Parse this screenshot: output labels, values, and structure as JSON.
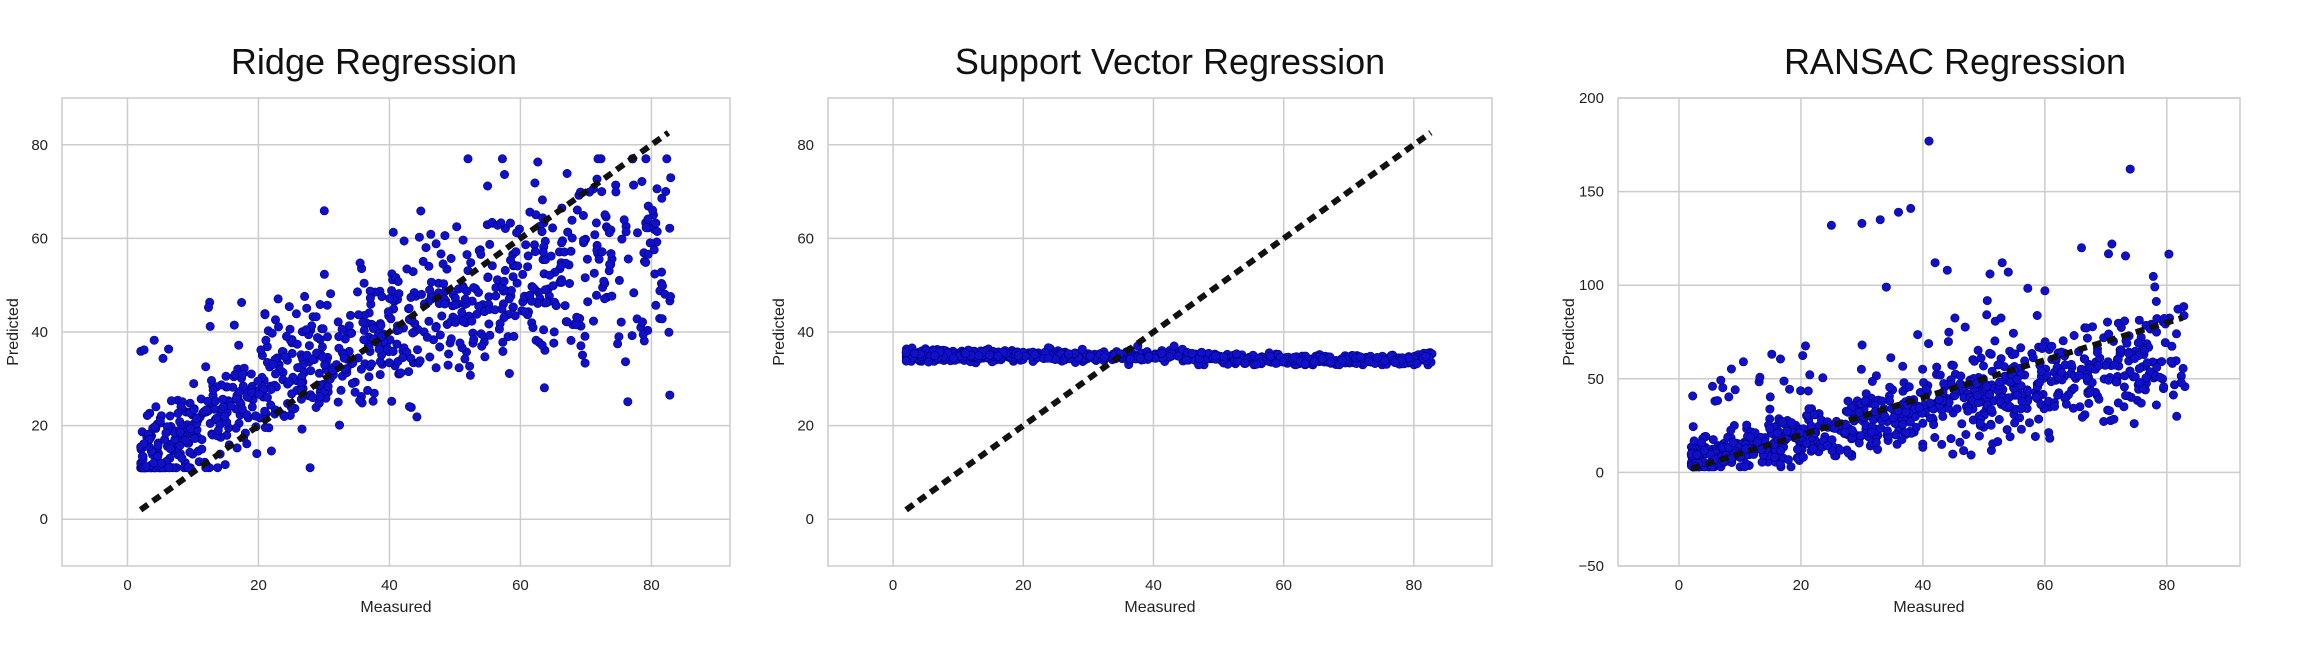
{
  "colors": {
    "points": "#1010c8",
    "point_edge": "#000080",
    "fit_line": "#111111",
    "grid": "#cccccc",
    "frame": "#cccccc"
  },
  "chart_data": [
    {
      "type": "scatter",
      "title": "Ridge Regression",
      "xlabel": "Measured",
      "ylabel": "Predicted",
      "xlim": [
        -10,
        92
      ],
      "ylim": [
        -10,
        90
      ],
      "xticks": [
        0,
        20,
        40,
        60,
        80
      ],
      "yticks": [
        0,
        20,
        40,
        60,
        80
      ],
      "grid": true,
      "reference_line": {
        "style": "dashed",
        "x": [
          2,
          82.6
        ],
        "y": [
          2,
          82.6
        ]
      },
      "points_summary": {
        "count": 900,
        "x_range": [
          2,
          83
        ],
        "y_range": [
          11,
          77
        ]
      },
      "series": [
        {
          "x": [
            2,
            4,
            6,
            8,
            10,
            12,
            14,
            16,
            18,
            20,
            22,
            24,
            26,
            28,
            30,
            32,
            34,
            36,
            38,
            40,
            42,
            44,
            46,
            48,
            50,
            52,
            54,
            56,
            58,
            60,
            62,
            64,
            66,
            68,
            70,
            72,
            74,
            76,
            78,
            80,
            82
          ],
          "y": [
            12,
            14,
            15,
            17,
            19,
            21,
            22,
            24,
            25,
            27,
            28,
            30,
            31,
            33,
            34,
            35,
            36,
            37,
            39,
            40,
            41,
            42,
            43,
            44,
            45,
            46,
            47,
            48,
            49,
            50,
            51,
            52,
            52,
            53,
            54,
            55,
            56,
            56,
            57,
            58,
            58
          ]
        }
      ]
    },
    {
      "type": "scatter",
      "title": "Support Vector Regression",
      "xlabel": "Measured",
      "ylabel": "Predicted",
      "xlim": [
        -10,
        92
      ],
      "ylim": [
        -10,
        90
      ],
      "xticks": [
        0,
        20,
        40,
        60,
        80
      ],
      "yticks": [
        0,
        20,
        40,
        60,
        80
      ],
      "grid": true,
      "reference_line": {
        "style": "dashed",
        "x": [
          2,
          82.6
        ],
        "y": [
          2,
          82.6
        ]
      },
      "points_summary": {
        "count": 900,
        "x_range": [
          2,
          83
        ],
        "y_range": [
          33,
          37
        ]
      },
      "series": [
        {
          "x": [
            2,
            10,
            20,
            30,
            40,
            50,
            60,
            70,
            80,
            83
          ],
          "y": [
            35,
            35,
            35,
            35,
            35,
            34.5,
            34,
            34,
            34,
            35
          ]
        }
      ]
    },
    {
      "type": "scatter",
      "title": "RANSAC Regression",
      "xlabel": "Measured",
      "ylabel": "Predicted",
      "xlim": [
        -10,
        92
      ],
      "ylim": [
        -50,
        200
      ],
      "xticks": [
        0,
        20,
        40,
        60,
        80
      ],
      "yticks": [
        -50,
        0,
        50,
        100,
        150,
        200
      ],
      "grid": true,
      "reference_line": {
        "style": "dashed",
        "x": [
          2,
          82.6
        ],
        "y": [
          2,
          82.6
        ]
      },
      "points_summary": {
        "count": 900,
        "x_range": [
          2,
          83
        ],
        "y_range": [
          3,
          177
        ]
      },
      "outliers": [
        {
          "x": 41,
          "y": 177
        },
        {
          "x": 74,
          "y": 162
        },
        {
          "x": 38,
          "y": 141
        },
        {
          "x": 36,
          "y": 139
        },
        {
          "x": 33,
          "y": 135
        },
        {
          "x": 25,
          "y": 132
        },
        {
          "x": 30,
          "y": 133
        },
        {
          "x": 71,
          "y": 122
        },
        {
          "x": 66,
          "y": 120
        },
        {
          "x": 42,
          "y": 112
        },
        {
          "x": 44,
          "y": 108
        },
        {
          "x": 53,
          "y": 112
        },
        {
          "x": 54,
          "y": 107
        },
        {
          "x": 51,
          "y": 106
        },
        {
          "x": 60,
          "y": 97
        },
        {
          "x": 34,
          "y": 99
        }
      ]
    }
  ]
}
